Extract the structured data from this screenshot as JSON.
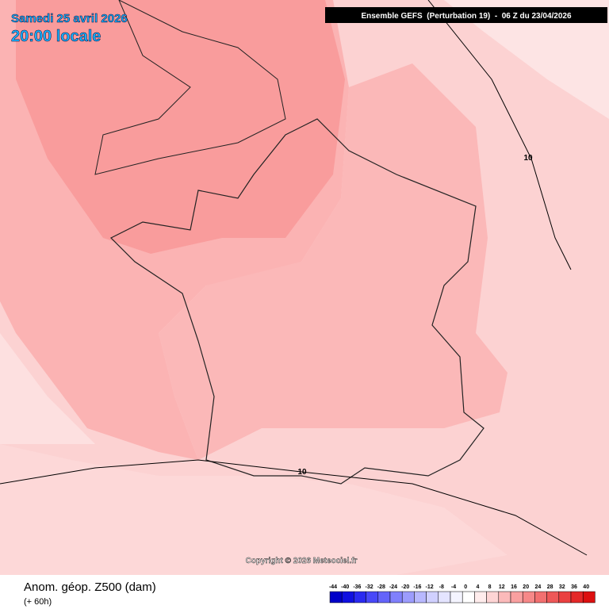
{
  "map": {
    "date": "Samedi 25 avril 2026",
    "time": "20:00 locale",
    "model": "Ensemble GEFS  (Perturbation 19)  -  06 Z du 23/04/2026",
    "copyright": "Copyright © 2026 Meteociel.fr",
    "contour_labels": [
      "10",
      "10"
    ]
  },
  "legend": {
    "title": "Anom. géop. Z500 (dam)",
    "subtitle": "(+ 60h)",
    "ticks": [
      "-44",
      "-40",
      "-36",
      "-32",
      "-28",
      "-24",
      "-20",
      "-16",
      "-12",
      "-8",
      "-4",
      "0",
      "4",
      "8",
      "12",
      "16",
      "20",
      "24",
      "28",
      "32",
      "36",
      "40"
    ],
    "colors": [
      "#0000c8",
      "#1010e0",
      "#2a2af0",
      "#4848f8",
      "#6464fa",
      "#8080fc",
      "#9c9cfd",
      "#b8b8fe",
      "#d0d0ff",
      "#e4e4ff",
      "#f4f4ff",
      "#ffffff",
      "#ffecec",
      "#fdd4d4",
      "#fbbaba",
      "#f9a0a0",
      "#f68888",
      "#f27070",
      "#ee5858",
      "#ea4040",
      "#e42828",
      "#dc1010"
    ]
  }
}
